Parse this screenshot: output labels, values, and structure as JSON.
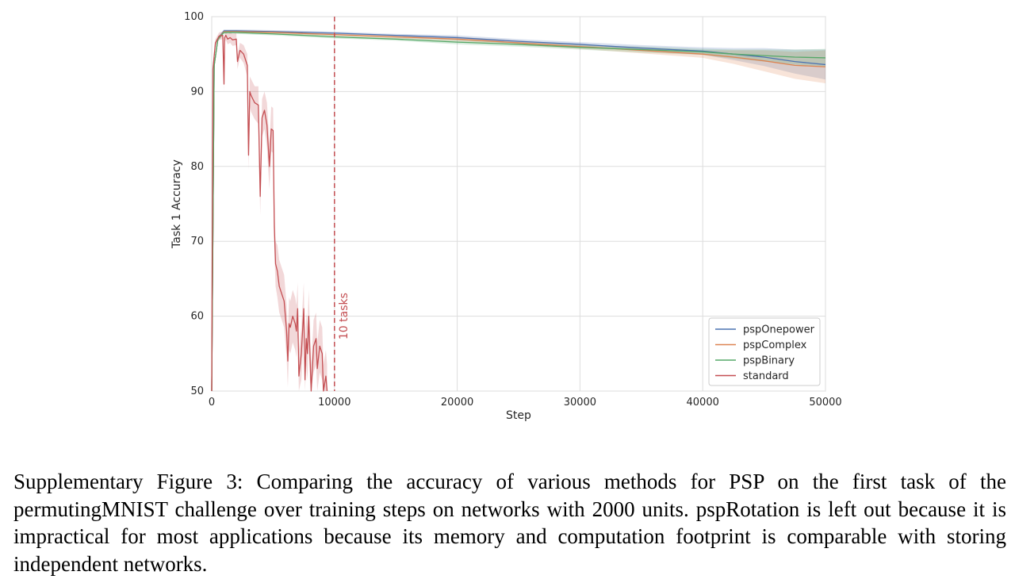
{
  "chart_data": {
    "type": "line",
    "xlabel": "Step",
    "ylabel": "Task 1 Accuracy",
    "xlim": [
      0,
      50000
    ],
    "ylim": [
      50,
      100
    ],
    "x_ticks": [
      0,
      10000,
      20000,
      30000,
      40000,
      50000
    ],
    "y_ticks": [
      50,
      60,
      70,
      80,
      90,
      100
    ],
    "x_tick_labels": [
      "0",
      "10000",
      "20000",
      "30000",
      "40000",
      "50000"
    ],
    "y_tick_labels": [
      "50",
      "60",
      "70",
      "80",
      "90",
      "100"
    ],
    "grid": true,
    "legend_position": "lower-right",
    "annotation": {
      "text": "10 tasks",
      "x": 10000,
      "style": "dashed vertical line",
      "color": "#c44e52"
    },
    "series": [
      {
        "name": "pspOnepower",
        "color": "#4c72b0",
        "x": [
          0,
          200,
          500,
          1000,
          2000,
          5000,
          10000,
          15000,
          20000,
          25000,
          30000,
          35000,
          40000,
          42500,
          45000,
          47500,
          50000
        ],
        "y": [
          50,
          93.5,
          97,
          98.1,
          98.1,
          98.0,
          97.8,
          97.5,
          97.2,
          96.7,
          96.3,
          95.8,
          95.4,
          95.0,
          94.6,
          94.0,
          93.6
        ],
        "band": [
          0.2,
          0.3,
          0.3,
          0.2,
          0.2,
          0.2,
          0.2,
          0.2,
          0.3,
          0.3,
          0.3,
          0.4,
          0.5,
          0.8,
          1.2,
          1.6,
          2.0
        ]
      },
      {
        "name": "pspComplex",
        "color": "#dd8452",
        "x": [
          0,
          200,
          500,
          1000,
          2000,
          5000,
          10000,
          15000,
          20000,
          25000,
          30000,
          35000,
          40000,
          42500,
          45000,
          47500,
          50000
        ],
        "y": [
          50,
          93.5,
          97,
          98.0,
          98.0,
          97.9,
          97.6,
          97.3,
          97.0,
          96.5,
          96.0,
          95.5,
          95.0,
          94.6,
          94.1,
          93.5,
          93.3
        ],
        "band": [
          0.2,
          0.3,
          0.3,
          0.2,
          0.2,
          0.2,
          0.2,
          0.2,
          0.3,
          0.3,
          0.3,
          0.4,
          0.5,
          0.9,
          1.4,
          1.8,
          2.2
        ]
      },
      {
        "name": "pspBinary",
        "color": "#55a868",
        "x": [
          0,
          200,
          500,
          1000,
          2000,
          5000,
          10000,
          15000,
          20000,
          25000,
          30000,
          35000,
          40000,
          42500,
          45000,
          47500,
          50000
        ],
        "y": [
          50,
          93.5,
          97,
          97.9,
          97.9,
          97.7,
          97.3,
          97.0,
          96.6,
          96.3,
          95.9,
          95.6,
          95.3,
          95.0,
          94.8,
          94.6,
          94.5
        ],
        "band": [
          0.2,
          0.3,
          0.3,
          0.2,
          0.2,
          0.2,
          0.2,
          0.2,
          0.3,
          0.3,
          0.3,
          0.4,
          0.4,
          0.6,
          0.8,
          1.0,
          1.2
        ]
      },
      {
        "name": "standard",
        "color": "#c44e52",
        "x": [
          0,
          100,
          300,
          600,
          900,
          1000,
          1050,
          1150,
          1300,
          1500,
          1700,
          2000,
          2100,
          2300,
          2600,
          2900,
          3000,
          3100,
          3200,
          3500,
          3800,
          3950,
          4100,
          4300,
          4500,
          4700,
          4850,
          5000,
          5100,
          5200,
          5350,
          5500,
          5700,
          5900,
          6100,
          6200,
          6300,
          6400,
          6600,
          6800,
          6900,
          7000,
          7100,
          7300,
          7500,
          7600,
          7700,
          7800,
          7900,
          8000,
          8100,
          8300,
          8500,
          8600,
          8800,
          9000,
          9100,
          9300,
          9400
        ],
        "y": [
          50,
          93,
          96.5,
          97.4,
          97.5,
          91,
          97.2,
          97.5,
          97.0,
          97.2,
          96.9,
          97.0,
          94,
          95.5,
          95.0,
          93.5,
          81.5,
          90.0,
          89.5,
          88.5,
          88.2,
          76.0,
          86.5,
          87.5,
          85.5,
          80.0,
          85.0,
          84.8,
          72.0,
          67.0,
          66.0,
          64.0,
          63.0,
          62.0,
          58.0,
          54.0,
          59.0,
          58.5,
          60.0,
          59.0,
          58.0,
          61.0,
          52.0,
          55.0,
          61.0,
          51.5,
          57.0,
          55.0,
          60.0,
          55.0,
          50.0,
          56.0,
          57.0,
          53.0,
          56.0,
          55.0,
          50.0,
          52.0,
          50.0
        ],
        "band": [
          0.3,
          0.5,
          0.5,
          0.5,
          0.5,
          1.0,
          0.6,
          0.6,
          0.7,
          0.7,
          0.8,
          0.8,
          1.0,
          1.0,
          1.2,
          1.5,
          2.0,
          2.0,
          2.2,
          2.2,
          2.5,
          2.5,
          2.5,
          2.5,
          3.0,
          3.0,
          3.0,
          3.0,
          3.0,
          3.0,
          3.5,
          3.5,
          3.5,
          3.5,
          3.5,
          3.5,
          3.5,
          3.5,
          3.5,
          3.5,
          3.5,
          3.5,
          3.5,
          3.5,
          3.5,
          3.5,
          3.5,
          3.5,
          3.5,
          3.5,
          3.5,
          3.5,
          3.5,
          3.5,
          3.5,
          3.5,
          3.5,
          3.5,
          3.5
        ]
      }
    ]
  },
  "caption": "Supplementary Figure 3: Comparing the accuracy of various methods for PSP on the first task of the permutingMNIST challenge over training steps on networks with 2000 units. pspRotation is left out because it is impractical for most applications because its memory and computation footprint is comparable with storing independent networks."
}
